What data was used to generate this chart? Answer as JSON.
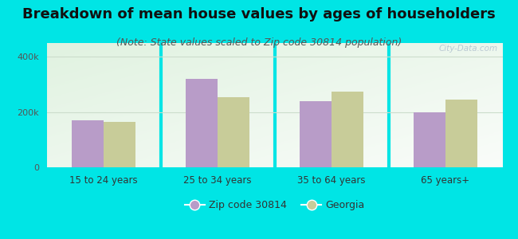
{
  "title": "Breakdown of mean house values by ages of householders",
  "subtitle": "(Note: State values scaled to Zip code 30814 population)",
  "categories": [
    "15 to 24 years",
    "25 to 34 years",
    "35 to 64 years",
    "65 years+"
  ],
  "zip_values": [
    170000,
    320000,
    240000,
    200000
  ],
  "georgia_values": [
    165000,
    255000,
    275000,
    245000
  ],
  "zip_color": "#b89cc8",
  "georgia_color": "#c8cc99",
  "background_outer": "#00e5e5",
  "ylim": [
    0,
    450000
  ],
  "ytick_labels": [
    "0",
    "200k",
    "400k"
  ],
  "ytick_values": [
    0,
    200000,
    400000
  ],
  "legend_zip_label": "Zip code 30814",
  "legend_georgia_label": "Georgia",
  "bar_width": 0.28,
  "title_fontsize": 13,
  "subtitle_fontsize": 9,
  "watermark": "City-Data.com"
}
